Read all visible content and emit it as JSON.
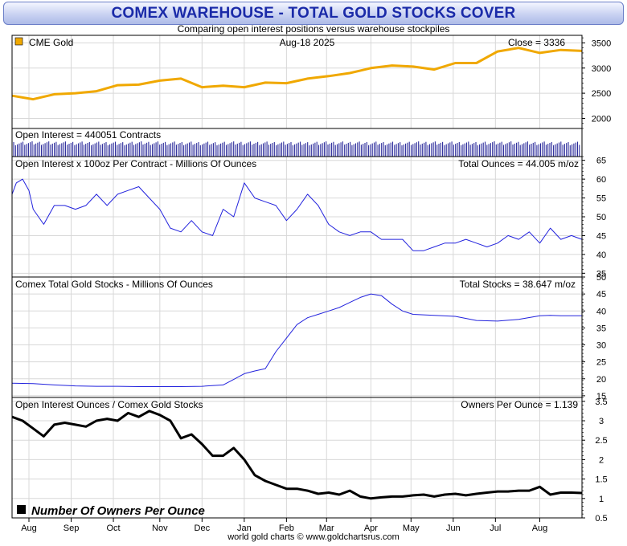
{
  "header": {
    "title": "COMEX WAREHOUSE - TOTAL GOLD STOCKS COVER",
    "subtitle": "Comparing open interest positions versus warehouse stockpiles"
  },
  "footer": {
    "credit": "world gold charts © www.goldchartsrus.com"
  },
  "colors": {
    "gold": "#f0a800",
    "blue": "#2222dd",
    "black": "#000000",
    "grid": "#d8d8d8"
  },
  "chart_data": [
    {
      "type": "line",
      "name": "gold-price",
      "legend": "CME Gold",
      "date_label": "Aug-18  2025",
      "right_label": "Close = 3336",
      "ylim": [
        1800,
        3650
      ],
      "yticks": [
        2000,
        2500,
        3000,
        3500
      ],
      "x": [
        0,
        10,
        20,
        30,
        40,
        50,
        60,
        70,
        80,
        90,
        100,
        110,
        120,
        130,
        140,
        150,
        160,
        165,
        170,
        180,
        190,
        200,
        210,
        220,
        230,
        240,
        250,
        260,
        270
      ],
      "values": [
        2450,
        2380,
        2480,
        2500,
        2540,
        2660,
        2670,
        2750,
        2790,
        2620,
        2650,
        2620,
        2710,
        2700,
        2790,
        2840,
        2900,
        2950,
        3000,
        3050,
        3030,
        2970,
        3100,
        3100,
        3330,
        3400,
        3300,
        3360,
        3340
      ]
    },
    {
      "type": "bar",
      "name": "open-interest-contracts",
      "right_label": "Open Interest = 440051 Contracts",
      "band": "uniform-volume"
    },
    {
      "type": "line",
      "name": "open-interest-ounces",
      "left_label": "Open Interest x 100oz Per Contract - Millions Of Ounces",
      "right_label": "Total Ounces = 44.005 m/oz",
      "ylim": [
        34,
        66
      ],
      "yticks": [
        35,
        40,
        45,
        50,
        55,
        60,
        65
      ],
      "x": [
        0,
        2,
        5,
        8,
        10,
        15,
        20,
        25,
        30,
        35,
        40,
        45,
        50,
        55,
        60,
        65,
        70,
        75,
        80,
        85,
        90,
        95,
        100,
        105,
        110,
        115,
        120,
        125,
        130,
        135,
        140,
        145,
        150,
        155,
        160,
        165,
        170,
        175,
        180,
        185,
        190,
        195,
        200,
        205,
        210,
        215,
        220,
        225,
        230,
        235,
        240,
        245,
        250,
        255,
        260,
        265,
        270
      ],
      "values": [
        56,
        59,
        60,
        57,
        52,
        48,
        53,
        53,
        52,
        53,
        56,
        53,
        56,
        57,
        58,
        55,
        52,
        47,
        46,
        49,
        46,
        45,
        52,
        50,
        59,
        55,
        54,
        53,
        49,
        52,
        56,
        53,
        48,
        46,
        45,
        46,
        46,
        44,
        44,
        44,
        41,
        41,
        42,
        43,
        43,
        44,
        43,
        42,
        43,
        45,
        44,
        46,
        43,
        47,
        44,
        45,
        44
      ]
    },
    {
      "type": "line",
      "name": "comex-gold-stocks",
      "left_label": "Comex Total Gold Stocks - Millions Of Ounces",
      "right_label": "Total Stocks = 38.647 m/oz",
      "ylim": [
        14.5,
        50
      ],
      "yticks": [
        15,
        20,
        25,
        30,
        35,
        40,
        45,
        50
      ],
      "x": [
        0,
        10,
        20,
        30,
        40,
        50,
        60,
        70,
        80,
        90,
        100,
        105,
        110,
        115,
        120,
        125,
        130,
        135,
        140,
        145,
        150,
        155,
        160,
        165,
        170,
        175,
        180,
        185,
        190,
        200,
        210,
        220,
        230,
        240,
        250,
        255,
        260,
        270
      ],
      "values": [
        18.7,
        18.6,
        18.2,
        17.9,
        17.8,
        17.8,
        17.7,
        17.7,
        17.7,
        17.8,
        18.2,
        19.8,
        21.5,
        22.3,
        23,
        28,
        32,
        36,
        38,
        39,
        40,
        41,
        42.5,
        44,
        45,
        44.5,
        42,
        40,
        39,
        38.7,
        38.4,
        37.2,
        37,
        37.5,
        38.6,
        38.7,
        38.6,
        38.6
      ]
    },
    {
      "type": "line",
      "name": "owners-per-ounce",
      "left_label": "Open Interest Ounces / Comex Gold Stocks",
      "right_label": "Owners Per Ounce = 1.139",
      "legend": "Number Of Owners Per Ounce",
      "ylim": [
        0.5,
        3.6
      ],
      "yticks": [
        0.5,
        1,
        1.5,
        2,
        2.5,
        3,
        3.5
      ],
      "x": [
        0,
        5,
        10,
        15,
        20,
        25,
        30,
        35,
        40,
        45,
        50,
        55,
        60,
        65,
        70,
        75,
        80,
        85,
        90,
        95,
        100,
        105,
        110,
        115,
        120,
        125,
        130,
        135,
        140,
        145,
        150,
        155,
        160,
        165,
        170,
        175,
        180,
        185,
        190,
        195,
        200,
        205,
        210,
        215,
        220,
        225,
        230,
        235,
        240,
        245,
        250,
        255,
        260,
        265,
        270
      ],
      "values": [
        3.1,
        3.0,
        2.8,
        2.6,
        2.9,
        2.95,
        2.9,
        2.85,
        3.0,
        3.05,
        3.0,
        3.2,
        3.1,
        3.25,
        3.15,
        3.0,
        2.55,
        2.65,
        2.4,
        2.1,
        2.1,
        2.3,
        2.0,
        1.6,
        1.45,
        1.35,
        1.25,
        1.25,
        1.2,
        1.12,
        1.15,
        1.1,
        1.2,
        1.05,
        1.0,
        1.03,
        1.05,
        1.05,
        1.08,
        1.1,
        1.05,
        1.1,
        1.12,
        1.08,
        1.12,
        1.15,
        1.18,
        1.18,
        1.2,
        1.2,
        1.3,
        1.1,
        1.15,
        1.15,
        1.14
      ]
    }
  ],
  "x_axis": {
    "months": [
      "Aug",
      "Sep",
      "Oct",
      "Nov",
      "Dec",
      "Jan",
      "Feb",
      "Mar",
      "Apr",
      "May",
      "Jun",
      "Jul",
      "Aug"
    ],
    "month_positions": [
      8,
      28,
      48,
      70,
      90,
      110,
      130,
      149,
      170,
      189,
      209,
      229,
      250
    ]
  }
}
